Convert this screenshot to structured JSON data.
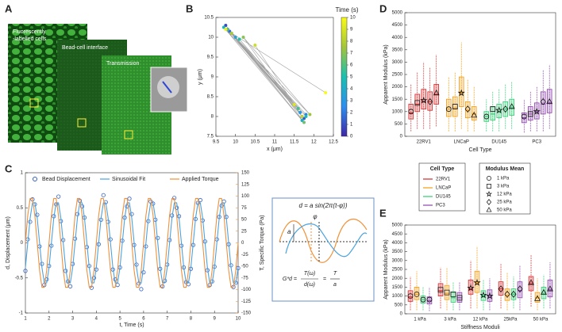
{
  "panel_labels": [
    "A",
    "B",
    "C",
    "D",
    "E"
  ],
  "panel_a": {
    "labels": [
      "Fluorescently",
      "-labelled cells",
      "Bead-cell interface",
      "Transmission"
    ]
  },
  "equation": {
    "formula": "d = a sin(2π(t-φ))",
    "amplitude": "a",
    "phase": "φ",
    "lhs": "G*d =",
    "num1": "T(ω)",
    "den1": "d(ω)",
    "eq": "=",
    "num2": "T",
    "den2": "a"
  },
  "chart_data": [
    {
      "type": "scatter",
      "x_label": "x (μm)",
      "y_label": "y (μm)",
      "colorbar_label": "Time (s)",
      "x": [
        9.8,
        11.7,
        9.75,
        11.75,
        9.85,
        11.8,
        9.9,
        11.65,
        10.0,
        11.7,
        9.7,
        11.8,
        10.1,
        11.6,
        9.8,
        11.75,
        10.2,
        11.9,
        9.9,
        11.7,
        10.5,
        11.5,
        9.75,
        12.3
      ],
      "values": [
        10.2,
        8.0,
        10.3,
        7.95,
        10.15,
        8.05,
        10.1,
        8.1,
        10.0,
        7.9,
        10.25,
        8.0,
        9.95,
        8.2,
        10.2,
        7.85,
        10.0,
        8.05,
        10.1,
        8.0,
        9.8,
        8.3,
        10.2,
        8.6
      ],
      "time": [
        0,
        0.4,
        0.9,
        1.3,
        1.7,
        2.2,
        2.6,
        3.0,
        3.5,
        3.9,
        4.3,
        4.8,
        5.2,
        5.7,
        6.1,
        6.5,
        7.0,
        7.4,
        7.8,
        8.3,
        8.7,
        9.1,
        9.6,
        10
      ],
      "xlim": [
        9.5,
        12.5
      ],
      "xticks": [
        9.5,
        10,
        10.5,
        11,
        11.5,
        12,
        12.5
      ],
      "ylim": [
        7.5,
        10.5
      ],
      "yticks": [
        7.5,
        8,
        8.5,
        9,
        9.5,
        10,
        10.5
      ],
      "clim": [
        0,
        10
      ],
      "cticks": [
        0,
        1,
        2,
        3,
        4,
        5,
        6,
        7,
        8,
        9,
        10
      ],
      "colormap": [
        "#3e26a8",
        "#2d8ef0",
        "#19c0b0",
        "#a3c53a",
        "#f9fb15"
      ],
      "line_color": "#a0a0a0"
    },
    {
      "type": "line",
      "x_label": "t, Time (s)",
      "y_label": "d, Displacement (μm)",
      "y2_label": "T, Specific Torque (Pa)",
      "x": [
        1,
        1.1,
        1.2,
        1.3,
        1.4,
        1.5,
        1.6,
        1.7,
        1.8,
        1.9,
        2,
        2.1,
        2.2,
        2.3,
        2.4,
        2.5,
        2.6,
        2.7,
        2.8,
        2.9,
        3,
        3.1,
        3.2,
        3.3,
        3.4,
        3.5,
        3.6,
        3.7,
        3.8,
        3.9,
        4,
        4.1,
        4.2,
        4.3,
        4.4,
        4.5,
        4.6,
        4.7,
        4.8,
        4.9,
        5,
        5.1,
        5.2,
        5.3,
        5.4,
        5.5,
        5.6,
        5.7,
        5.8,
        5.9,
        6,
        6.1,
        6.2,
        6.3,
        6.4,
        6.5,
        6.6,
        6.7,
        6.8,
        6.9,
        7,
        7.1,
        7.2,
        7.3,
        7.4,
        7.5,
        7.6,
        7.7,
        7.8,
        7.9,
        8,
        8.1,
        8.2,
        8.3,
        8.4,
        8.5,
        8.6,
        8.7,
        8.8,
        8.9,
        9,
        9.1,
        9.2,
        9.3,
        9.4,
        9.5,
        9.6,
        9.7,
        9.8,
        9.9,
        10
      ],
      "series": [
        {
          "name": "Bead Displacement",
          "color": "#2f5fc4",
          "style": "markers",
          "values": [
            -0.4,
            0.05,
            0.3,
            0.62,
            0.55,
            0.4,
            -0.05,
            -0.3,
            -0.6,
            -0.52,
            -0.33,
            -0.04,
            0.38,
            0.55,
            0.66,
            0.31,
            0.04,
            -0.4,
            -0.55,
            -0.62,
            -0.3,
            0.06,
            0.41,
            0.6,
            0.52,
            0.36,
            -0.06,
            -0.33,
            -0.64,
            -0.5,
            -0.38,
            -0.02,
            0.33,
            0.68,
            0.58,
            0.3,
            0.05,
            -0.38,
            -0.52,
            -0.6,
            -0.35,
            0.03,
            0.36,
            0.52,
            0.63,
            0.41,
            -0.03,
            -0.31,
            -0.58,
            -0.66,
            -0.42,
            -0.05,
            0.31,
            0.59,
            0.56,
            0.33,
            0.07,
            -0.37,
            -0.62,
            -0.54,
            -0.31,
            0.04,
            0.39,
            0.64,
            0.5,
            0.38,
            -0.04,
            -0.35,
            -0.56,
            -0.59,
            -0.37,
            -0.03,
            0.34,
            0.57,
            0.61,
            0.32,
            0.02,
            -0.39,
            -0.6,
            -0.55,
            -0.34,
            0.05,
            0.37,
            0.53,
            0.59,
            0.37,
            -0.02,
            -0.32,
            -0.63,
            -0.57,
            -0.36
          ]
        },
        {
          "name": "Sinusoidal Fit",
          "color": "#4aa3df",
          "values": [
            -0.353,
            0,
            0.353,
            0.571,
            0.571,
            0.353,
            0,
            -0.353,
            -0.571,
            -0.571,
            -0.353,
            0,
            0.353,
            0.571,
            0.571,
            0.353,
            0,
            -0.353,
            -0.571,
            -0.571,
            -0.353,
            0,
            0.353,
            0.571,
            0.571,
            0.353,
            0,
            -0.353,
            -0.571,
            -0.571,
            -0.353,
            0,
            0.353,
            0.571,
            0.571,
            0.353,
            0,
            -0.353,
            -0.571,
            -0.571,
            -0.353,
            0,
            0.353,
            0.571,
            0.571,
            0.353,
            0,
            -0.353,
            -0.571,
            -0.571,
            -0.353,
            0,
            0.353,
            0.571,
            0.571,
            0.353,
            0,
            -0.353,
            -0.571,
            -0.571,
            -0.353,
            0,
            0.353,
            0.571,
            0.571,
            0.353,
            0,
            -0.353,
            -0.571,
            -0.571,
            -0.353,
            0,
            0.353,
            0.571,
            0.571,
            0.353,
            0,
            -0.353,
            -0.571,
            -0.571,
            -0.353,
            0,
            0.353,
            0.571,
            0.571,
            0.353,
            0,
            -0.353,
            -0.571,
            -0.571,
            -0.353
          ]
        },
        {
          "name": "Applied Torque",
          "color": "#f0913a",
          "axis": "y2",
          "values": [
            0,
            58.8,
            95.1,
            95.1,
            58.8,
            0,
            -58.8,
            -95.1,
            -95.1,
            -58.8,
            0,
            58.8,
            95.1,
            95.1,
            58.8,
            0,
            -58.8,
            -95.1,
            -95.1,
            -58.8,
            0,
            58.8,
            95.1,
            95.1,
            58.8,
            0,
            -58.8,
            -95.1,
            -95.1,
            -58.8,
            0,
            58.8,
            95.1,
            95.1,
            58.8,
            0,
            -58.8,
            -95.1,
            -95.1,
            -58.8,
            0,
            58.8,
            95.1,
            95.1,
            58.8,
            0,
            -58.8,
            -95.1,
            -95.1,
            -58.8,
            0,
            58.8,
            95.1,
            95.1,
            58.8,
            0,
            -58.8,
            -95.1,
            -95.1,
            -58.8,
            0,
            58.8,
            95.1,
            95.1,
            58.8,
            0,
            -58.8,
            -95.1,
            -95.1,
            -58.8,
            0,
            58.8,
            95.1,
            95.1,
            58.8,
            0,
            -58.8,
            -95.1,
            -95.1,
            -58.8,
            0,
            58.8,
            95.1,
            95.1,
            58.8,
            0,
            -58.8,
            -95.1,
            -95.1,
            -58.8,
            0
          ]
        }
      ],
      "xlim": [
        1,
        10
      ],
      "xticks": [
        1,
        2,
        3,
        4,
        5,
        6,
        7,
        8,
        9,
        10
      ],
      "ylim": [
        -1,
        1
      ],
      "yticks": [
        -1,
        -0.5,
        0,
        0.5,
        1
      ],
      "y2lim": [
        -150,
        150
      ],
      "y2ticks": [
        -150,
        -125,
        -100,
        -75,
        -50,
        -25,
        0,
        25,
        50,
        75,
        100,
        125,
        150
      ],
      "legend": "top"
    },
    {
      "type": "box",
      "x_label": "Cell Type",
      "y_label": "Apparent Modulus (kPa)",
      "group_by": "series",
      "categories": [
        "22RV1",
        "LNCaP",
        "DU145",
        "PC3"
      ],
      "groups": [
        "1 kPa",
        "3 kPa",
        "12 kPa",
        "25 kPa",
        "50 kPa"
      ],
      "group_markers": [
        "circle",
        "square",
        "star",
        "diamond",
        "triangle"
      ],
      "legend_titles": [
        "Cell Type",
        "Modulus Mean"
      ],
      "series": [
        {
          "name": "22RV1",
          "color": "#d62728",
          "q1": [
            700,
            1000,
            1100,
            1050,
            1300
          ],
          "median": [
            950,
            1300,
            1400,
            1400,
            1700
          ],
          "q3": [
            1300,
            1700,
            1900,
            1800,
            2100
          ],
          "whisker_low": [
            200,
            300,
            300,
            300,
            400
          ],
          "whisker_high": [
            2100,
            2600,
            3000,
            2800,
            3300
          ],
          "mean": [
            1000,
            1350,
            1450,
            1400,
            1750
          ]
        },
        {
          "name": "LNCaP",
          "color": "#f39c12",
          "q1": [
            800,
            800,
            1200,
            750,
            650
          ],
          "median": [
            1100,
            1150,
            1750,
            1050,
            900
          ],
          "q3": [
            1500,
            1600,
            2400,
            1400,
            1200
          ],
          "whisker_low": [
            200,
            200,
            300,
            200,
            200
          ],
          "whisker_high": [
            2400,
            2600,
            3800,
            2300,
            2000
          ],
          "mean": [
            1100,
            1200,
            1750,
            1100,
            850
          ]
        },
        {
          "name": "DU145",
          "color": "#2ecc71",
          "q1": [
            600,
            650,
            750,
            800,
            850
          ],
          "median": [
            800,
            900,
            1000,
            1100,
            1150
          ],
          "q3": [
            1000,
            1200,
            1300,
            1400,
            1500
          ],
          "whisker_low": [
            200,
            200,
            200,
            300,
            300
          ],
          "whisker_high": [
            1500,
            1800,
            1900,
            2100,
            2200
          ],
          "mean": [
            800,
            1100,
            1050,
            1100,
            1200
          ]
        },
        {
          "name": "PC3",
          "color": "#8e44ad",
          "q1": [
            550,
            650,
            700,
            900,
            950
          ],
          "median": [
            750,
            900,
            1000,
            1300,
            1350
          ],
          "q3": [
            950,
            1200,
            1350,
            1800,
            1900
          ],
          "whisker_low": [
            150,
            200,
            200,
            200,
            300
          ],
          "whisker_high": [
            1500,
            1800,
            2000,
            2700,
            2900
          ],
          "mean": [
            800,
            900,
            1000,
            1400,
            1400
          ]
        }
      ],
      "ylim": [
        0,
        5000
      ],
      "yticks": [
        0,
        500,
        1000,
        1500,
        2000,
        2500,
        3000,
        3500,
        4000,
        4500,
        5000
      ]
    },
    {
      "type": "box",
      "x_label": "Stiffness Moduli",
      "y_label": "Apparent Modulus (kPa)",
      "group_by": "category",
      "categories": [
        "1 kPa",
        "3 kPa",
        "12 kPa",
        "25kPa",
        "50 kPa"
      ],
      "group_markers": [
        "circle",
        "square",
        "star",
        "diamond",
        "triangle"
      ],
      "series": [
        {
          "color": "#d62728",
          "q1": [
            700,
            1000,
            1100,
            1050,
            1300
          ],
          "median": [
            950,
            1300,
            1400,
            1400,
            1700
          ],
          "q3": [
            1300,
            1700,
            1900,
            1800,
            2100
          ],
          "whisker_low": [
            200,
            300,
            300,
            300,
            400
          ],
          "whisker_high": [
            2100,
            2600,
            3000,
            2800,
            3300
          ],
          "mean": [
            1000,
            1350,
            1450,
            1400,
            1750
          ]
        },
        {
          "color": "#f39c12",
          "q1": [
            800,
            800,
            1200,
            750,
            650
          ],
          "median": [
            1100,
            1150,
            1750,
            1050,
            900
          ],
          "q3": [
            1500,
            1600,
            2400,
            1400,
            1200
          ],
          "whisker_low": [
            200,
            200,
            300,
            200,
            200
          ],
          "whisker_high": [
            2400,
            2600,
            3800,
            2300,
            2000
          ],
          "mean": [
            1100,
            1200,
            1750,
            1100,
            850
          ]
        },
        {
          "color": "#2ecc71",
          "q1": [
            600,
            650,
            750,
            800,
            850
          ],
          "median": [
            800,
            900,
            1000,
            1100,
            1150
          ],
          "q3": [
            1000,
            1200,
            1300,
            1400,
            1500
          ],
          "whisker_low": [
            200,
            200,
            200,
            300,
            300
          ],
          "whisker_high": [
            1500,
            1800,
            1900,
            2100,
            2200
          ],
          "mean": [
            800,
            1100,
            1050,
            1100,
            1200
          ]
        },
        {
          "color": "#8e44ad",
          "q1": [
            550,
            650,
            700,
            900,
            950
          ],
          "median": [
            750,
            900,
            1000,
            1300,
            1350
          ],
          "q3": [
            950,
            1200,
            1350,
            1800,
            1900
          ],
          "whisker_low": [
            150,
            200,
            200,
            200,
            300
          ],
          "whisker_high": [
            1500,
            1800,
            2000,
            2700,
            2900
          ],
          "mean": [
            800,
            900,
            1000,
            1400,
            1400
          ]
        }
      ],
      "ylim": [
        0,
        5000
      ],
      "yticks": [
        0,
        500,
        1000,
        1500,
        2000,
        2500,
        3000,
        3500,
        4000,
        4500,
        5000
      ]
    }
  ]
}
